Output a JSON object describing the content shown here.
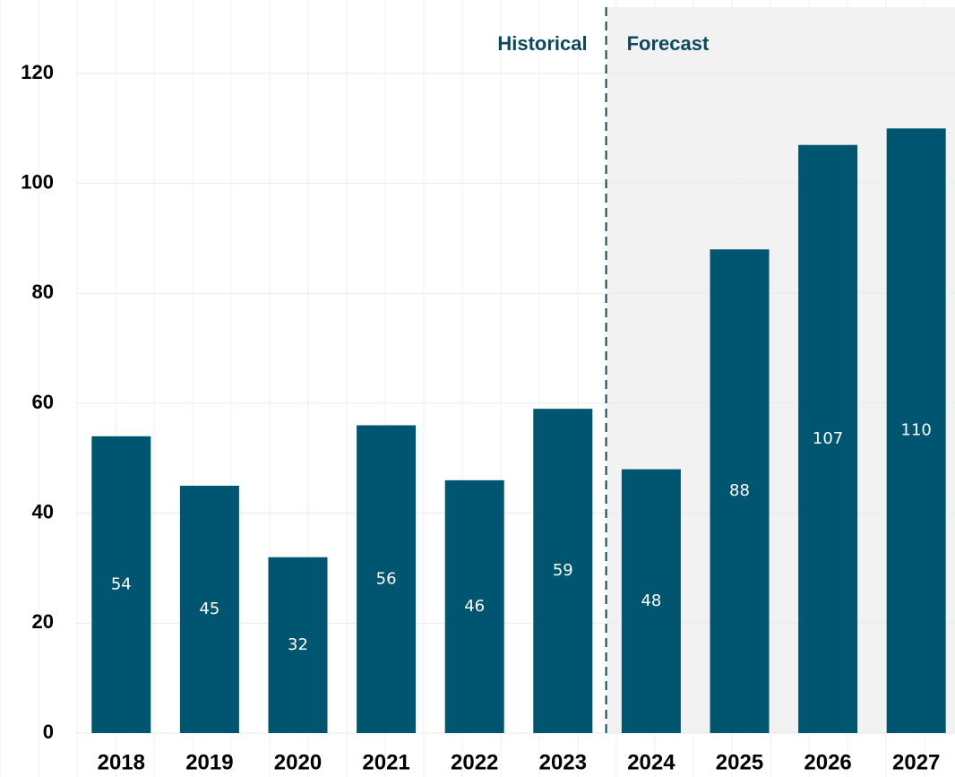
{
  "chart_data": {
    "type": "bar",
    "categories": [
      "2018",
      "2019",
      "2020",
      "2021",
      "2022",
      "2023",
      "2024",
      "2025",
      "2026",
      "2027"
    ],
    "values": [
      54,
      45,
      32,
      56,
      46,
      59,
      48,
      88,
      107,
      110
    ],
    "color": "#005670",
    "ylim": [
      0,
      120
    ],
    "yticks": [
      0,
      20,
      40,
      60,
      80,
      100,
      120
    ],
    "grid": true,
    "forecast_start": "2024",
    "annotations": {
      "historical": "Historical",
      "forecast": "Forecast"
    }
  }
}
